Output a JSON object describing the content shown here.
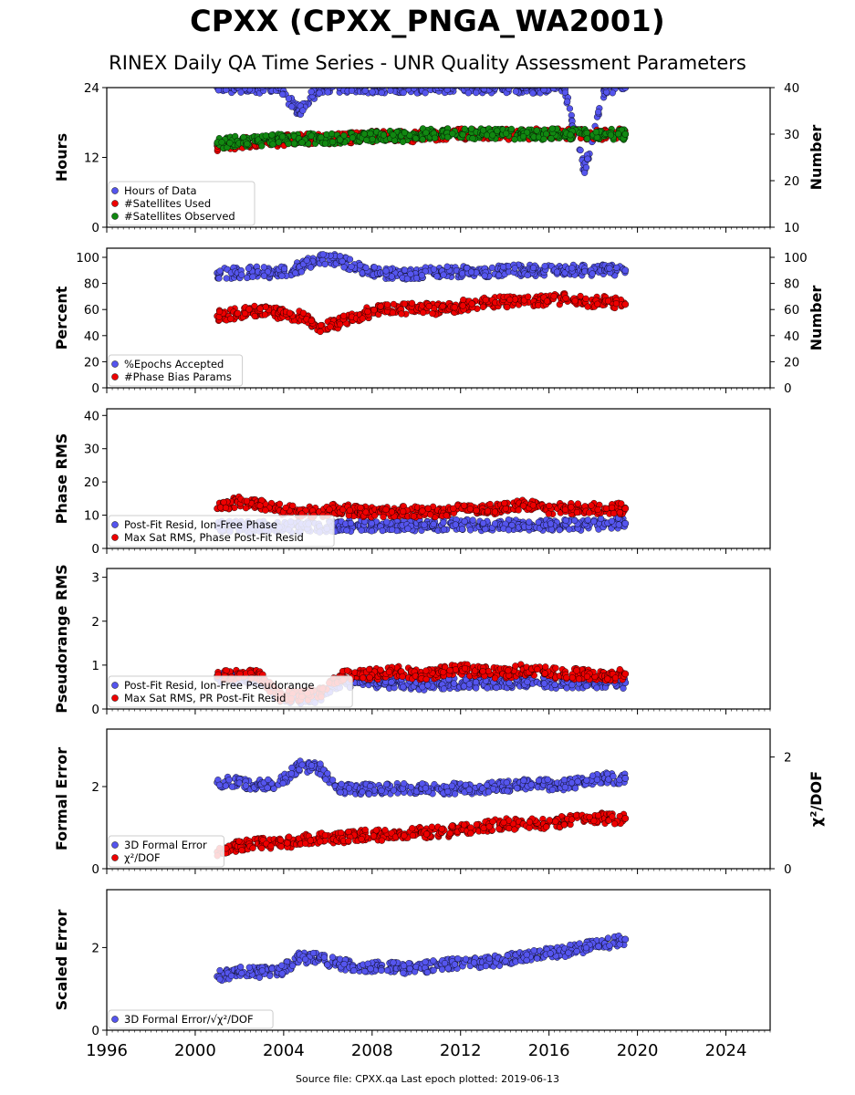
{
  "figure": {
    "title": "CPXX (CPXX_PNGA_WA2001)",
    "subtitle": "RINEX Daily QA Time Series - UNR Quality Assessment Parameters",
    "footer": "Source file: CPXX.qa Last epoch plotted: 2019-06-13",
    "colors": {
      "blue": "#5555ee",
      "red": "#ee0000",
      "green": "#118811"
    }
  },
  "chart_data": [
    {
      "type": "scatter",
      "ylabel": "Hours",
      "ylabel_right": "Number",
      "xlim": [
        1996,
        2026
      ],
      "ylim": [
        0,
        24
      ],
      "ylim_right": [
        10,
        40
      ],
      "xticks": [
        1996,
        2000,
        2004,
        2008,
        2012,
        2016,
        2020,
        2024
      ],
      "yticks": [
        "0",
        "12",
        "24"
      ],
      "yticks_right": [
        "10",
        "20",
        "30",
        "40"
      ],
      "legend": "lower-left",
      "series": [
        {
          "name": "Hours of Data",
          "color": "#5555ee",
          "axis": "left",
          "x_start": 2001.0,
          "x_end": 2019.45,
          "values": [
            24,
            24,
            24,
            24,
            20,
            24,
            24,
            24,
            24,
            24,
            24,
            24,
            24,
            24,
            24,
            24,
            24,
            24,
            9.8,
            24,
            24
          ]
        },
        {
          "name": "#Satellites Used",
          "color": "#ee0000",
          "axis": "right",
          "x_start": 2001.0,
          "x_end": 2019.45,
          "values": [
            27.5,
            28,
            28.5,
            28.5,
            29,
            29,
            29,
            29.5,
            29.5,
            29.5,
            29.5,
            30,
            30,
            30,
            30,
            30,
            30,
            30,
            30,
            30,
            30
          ]
        },
        {
          "name": "#Satellites Observed",
          "color": "#118811",
          "axis": "right",
          "x_start": 2001.0,
          "x_end": 2019.45,
          "values": [
            28,
            28.5,
            28.5,
            29,
            29,
            29,
            29,
            29.5,
            29.5,
            29.5,
            30,
            30,
            30,
            30,
            30,
            30,
            30,
            30,
            30,
            30,
            30
          ]
        }
      ]
    },
    {
      "type": "scatter",
      "ylabel": "Percent",
      "ylabel_right": "Number",
      "xlim": [
        1996,
        2026
      ],
      "ylim": [
        0,
        107
      ],
      "ylim_right": [
        0,
        107
      ],
      "xticks": [
        1996,
        2000,
        2004,
        2008,
        2012,
        2016,
        2020,
        2024
      ],
      "yticks": [
        "0",
        "20",
        "40",
        "60",
        "80",
        "100"
      ],
      "yticks_right": [
        "0",
        "20",
        "40",
        "60",
        "80",
        "100"
      ],
      "legend": "lower-left",
      "series": [
        {
          "name": "%Epochs Accepted",
          "color": "#5555ee",
          "axis": "left",
          "x_start": 2001.0,
          "x_end": 2019.45,
          "values": [
            88,
            88,
            89,
            88,
            92,
            99,
            98,
            91,
            88,
            87,
            88,
            89,
            89,
            89,
            90,
            90,
            90,
            90,
            90,
            90,
            90
          ]
        },
        {
          "name": "#Phase Bias Params",
          "color": "#ee0000",
          "axis": "right",
          "x_start": 2001.0,
          "x_end": 2019.45,
          "values": [
            55,
            57,
            59,
            57,
            55,
            47,
            50,
            56,
            60,
            60,
            61,
            60,
            63,
            65,
            66,
            66,
            67,
            68,
            66,
            66,
            64
          ]
        }
      ]
    },
    {
      "type": "scatter",
      "ylabel": "Phase RMS",
      "xlim": [
        1996,
        2026
      ],
      "ylim": [
        0,
        42
      ],
      "xticks": [
        1996,
        2000,
        2004,
        2008,
        2012,
        2016,
        2020,
        2024
      ],
      "yticks": [
        "0",
        "10",
        "20",
        "30",
        "40"
      ],
      "legend": "lower-left",
      "series": [
        {
          "name": "Post-Fit Resid, Ion-Free Phase",
          "color": "#5555ee",
          "x_start": 2001.0,
          "x_end": 2019.45,
          "values": [
            6.5,
            6.5,
            6.5,
            6.5,
            6.5,
            6.5,
            6.8,
            6.8,
            6.8,
            6.8,
            7,
            7,
            7,
            7,
            7,
            7,
            7,
            7,
            7,
            7.5,
            7.5
          ]
        },
        {
          "name": "Max Sat RMS, Phase Post-Fit Resid",
          "color": "#ee0000",
          "x_start": 2001.0,
          "x_end": 2019.45,
          "values": [
            12,
            14,
            13,
            12,
            11,
            11,
            12,
            11,
            11,
            11,
            11,
            11,
            12,
            12,
            12,
            13,
            12,
            12,
            12,
            12,
            12
          ]
        }
      ]
    },
    {
      "type": "scatter",
      "ylabel": "Pseudorange RMS",
      "xlim": [
        1996,
        2026
      ],
      "ylim": [
        0,
        3.2
      ],
      "xticks": [
        1996,
        2000,
        2004,
        2008,
        2012,
        2016,
        2020,
        2024
      ],
      "yticks": [
        "0",
        "1",
        "2",
        "3"
      ],
      "legend": "lower-left",
      "series": [
        {
          "name": "Post-Fit Resid, Ion-Free Pseudorange",
          "color": "#5555ee",
          "x_start": 2001.0,
          "x_end": 2019.45,
          "values": [
            0.7,
            0.7,
            0.7,
            0.25,
            0.25,
            0.25,
            0.6,
            0.6,
            0.6,
            0.6,
            0.55,
            0.55,
            0.6,
            0.6,
            0.6,
            0.6,
            0.6,
            0.6,
            0.6,
            0.6,
            0.6
          ]
        },
        {
          "name": "Max Sat RMS, PR Post-Fit Resid",
          "color": "#ee0000",
          "x_start": 2001.0,
          "x_end": 2019.45,
          "values": [
            0.75,
            0.8,
            0.8,
            0.3,
            0.3,
            0.35,
            0.75,
            0.8,
            0.8,
            0.85,
            0.75,
            0.85,
            0.9,
            0.85,
            0.8,
            0.9,
            0.85,
            0.8,
            0.8,
            0.75,
            0.8
          ]
        }
      ]
    },
    {
      "type": "scatter",
      "ylabel": "Formal Error",
      "ylabel_right": "χ²/DOF",
      "xlim": [
        1996,
        2026
      ],
      "ylim": [
        0,
        3.4
      ],
      "ylim_right": [
        0,
        2.5
      ],
      "xticks": [
        1996,
        2000,
        2004,
        2008,
        2012,
        2016,
        2020,
        2024
      ],
      "yticks": [
        "0",
        "2"
      ],
      "yticks_right": [
        "0",
        "2"
      ],
      "legend": "lower-left",
      "series": [
        {
          "name": "3D Formal Error",
          "color": "#5555ee",
          "axis": "left",
          "x_start": 2001.0,
          "x_end": 2019.45,
          "values": [
            2.1,
            2.1,
            2.05,
            2.05,
            2.5,
            2.45,
            1.95,
            1.95,
            1.95,
            1.95,
            1.95,
            1.95,
            1.95,
            1.95,
            2.0,
            2.05,
            2.05,
            2.05,
            2.1,
            2.2,
            2.2
          ]
        },
        {
          "name": "χ²/DOF",
          "color": "#ee0000",
          "axis": "right",
          "x_start": 2001.0,
          "x_end": 2019.45,
          "values": [
            0.3,
            0.4,
            0.45,
            0.45,
            0.5,
            0.55,
            0.55,
            0.6,
            0.6,
            0.6,
            0.65,
            0.65,
            0.7,
            0.75,
            0.8,
            0.8,
            0.8,
            0.85,
            0.9,
            0.9,
            0.9
          ]
        }
      ]
    },
    {
      "type": "scatter",
      "ylabel": "Scaled Error",
      "xlim": [
        1996,
        2026
      ],
      "ylim": [
        0,
        3.4
      ],
      "xticks": [
        1996,
        2000,
        2004,
        2008,
        2012,
        2016,
        2020,
        2024
      ],
      "yticks": [
        "0",
        "2"
      ],
      "legend": "lower-left",
      "series": [
        {
          "name": "3D Formal Error/√χ²/DOF",
          "color": "#5555ee",
          "x_start": 2001.0,
          "x_end": 2019.45,
          "values": [
            1.3,
            1.4,
            1.4,
            1.4,
            1.75,
            1.75,
            1.6,
            1.55,
            1.55,
            1.5,
            1.5,
            1.6,
            1.6,
            1.65,
            1.7,
            1.8,
            1.85,
            1.9,
            2.0,
            2.1,
            2.2
          ]
        }
      ]
    }
  ]
}
